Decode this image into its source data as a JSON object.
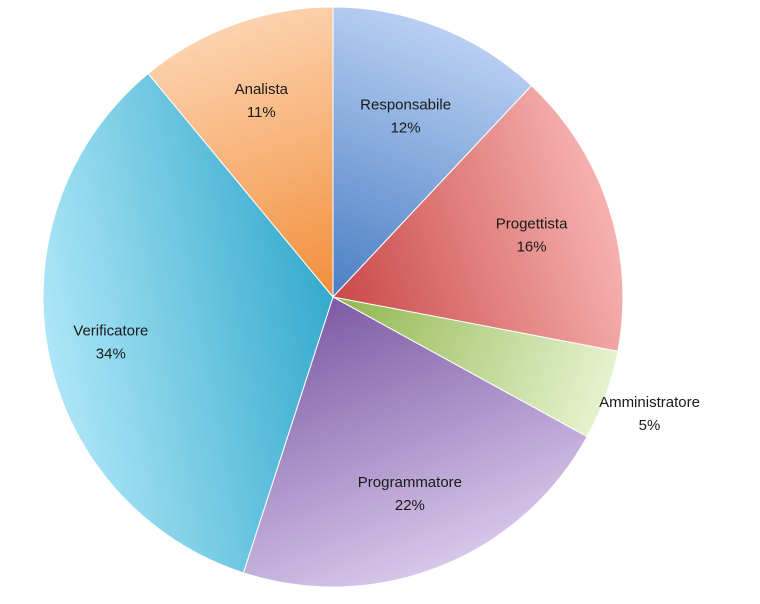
{
  "chart_data": {
    "type": "pie",
    "start_angle_deg": 0,
    "direction": "clockwise",
    "slices": [
      {
        "label": "Responsabile",
        "pct_label": "12%",
        "value": 12,
        "color_light": "#b9cff2",
        "color_dark": "#4a7fc4"
      },
      {
        "label": "Progettista",
        "pct_label": "16%",
        "value": 16,
        "color_light": "#f6b2b0",
        "color_dark": "#c94848"
      },
      {
        "label": "Amministratore",
        "pct_label": "5%",
        "value": 5,
        "color_light": "#e6f2cf",
        "color_dark": "#8fb64d"
      },
      {
        "label": "Programmatore",
        "pct_label": "22%",
        "value": 22,
        "color_light": "#d6c7ea",
        "color_dark": "#7d5aa5"
      },
      {
        "label": "Verificatore",
        "pct_label": "34%",
        "value": 34,
        "color_light": "#ade6f7",
        "color_dark": "#35aacd"
      },
      {
        "label": "Analista",
        "pct_label": "11%",
        "value": 11,
        "color_light": "#fcd2ae",
        "color_dark": "#f28e3a"
      }
    ]
  }
}
